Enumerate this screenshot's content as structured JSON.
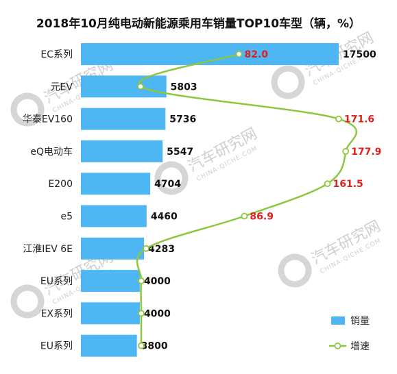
{
  "chart_data": {
    "type": "bar",
    "orientation": "horizontal",
    "title": "2018年10月纯电动新能源乘用车销量TOP10车型（辆，%）",
    "categories": [
      "EC系列",
      "元EV",
      "华泰EV160",
      "eQ电动车",
      "E200",
      "e5",
      "江淮IEV 6E",
      "EU系列",
      "EX系列",
      "EU系列"
    ],
    "series": [
      {
        "name": "销量",
        "type": "bar",
        "color": "#4db6f3",
        "values": [
          17500,
          5803,
          5736,
          5547,
          4704,
          4460,
          4283,
          4000,
          4000,
          3800
        ]
      },
      {
        "name": "增速",
        "type": "line",
        "color": "#8dc63f",
        "values": [
          82.0,
          null,
          171.6,
          177.9,
          161.5,
          86.9,
          null,
          null,
          null,
          null
        ],
        "labels": [
          "82.0",
          "",
          "171.6",
          "177.9",
          "161.5",
          "86.9",
          "",
          "",
          "",
          ""
        ]
      }
    ],
    "xlim": [
      0,
      18000
    ],
    "growth_xlim": [
      -60,
      200
    ],
    "grid": false,
    "legend": "bottom-right"
  },
  "legend": {
    "items": [
      "销量",
      "增速"
    ]
  },
  "watermark": {
    "text": "汽车研究网",
    "sub": "CHINA-QICHE.COM"
  }
}
